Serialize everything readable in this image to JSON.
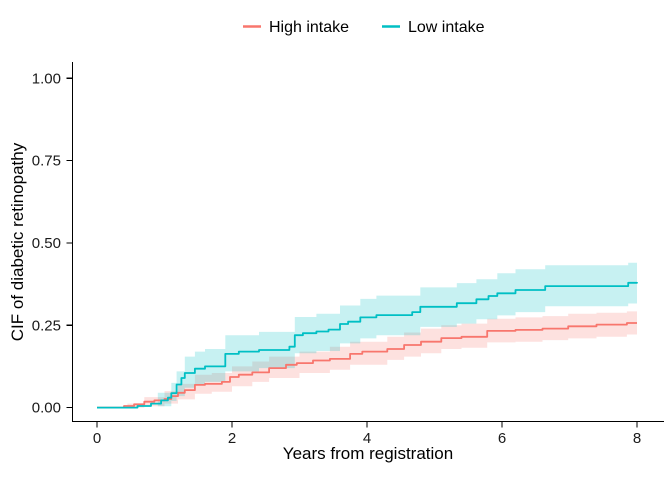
{
  "chart_data": {
    "type": "line",
    "subtype": "step-cumulative-incidence",
    "title": "",
    "xlabel": "Years from registration",
    "ylabel": "CIF of diabetic retinopathy",
    "xlim": [
      0,
      8
    ],
    "ylim": [
      0,
      1
    ],
    "grid": false,
    "legend_position": "top-center",
    "x_ticks": [
      {
        "label": "0",
        "value": 0
      },
      {
        "label": "2",
        "value": 2
      },
      {
        "label": "4",
        "value": 4
      },
      {
        "label": "6",
        "value": 6
      },
      {
        "label": "8",
        "value": 8
      }
    ],
    "y_ticks": [
      {
        "label": "0.00",
        "value": 0.0
      },
      {
        "label": "0.25",
        "value": 0.25
      },
      {
        "label": "0.50",
        "value": 0.5
      },
      {
        "label": "0.75",
        "value": 0.75
      },
      {
        "label": "1.00",
        "value": 1.0
      }
    ],
    "series": [
      {
        "name": "High intake",
        "color": "#F8766D",
        "band_color": "rgba(248,118,109,0.22)",
        "step": true,
        "points": [
          [
            0,
            0
          ],
          [
            0.4,
            0.005
          ],
          [
            0.55,
            0.01
          ],
          [
            0.7,
            0.018
          ],
          [
            0.85,
            0.022
          ],
          [
            1.0,
            0.026
          ],
          [
            1.1,
            0.035
          ],
          [
            1.2,
            0.045
          ],
          [
            1.3,
            0.053
          ],
          [
            1.45,
            0.069
          ],
          [
            1.6,
            0.072
          ],
          [
            1.85,
            0.078
          ],
          [
            1.97,
            0.093
          ],
          [
            2.1,
            0.1
          ],
          [
            2.3,
            0.107
          ],
          [
            2.55,
            0.12
          ],
          [
            2.8,
            0.13
          ],
          [
            2.96,
            0.135
          ],
          [
            3.2,
            0.143
          ],
          [
            3.45,
            0.148
          ],
          [
            3.75,
            0.163
          ],
          [
            3.93,
            0.17
          ],
          [
            4.3,
            0.178
          ],
          [
            4.55,
            0.19
          ],
          [
            4.8,
            0.2
          ],
          [
            5.1,
            0.211
          ],
          [
            5.4,
            0.215
          ],
          [
            5.78,
            0.233
          ],
          [
            6.2,
            0.236
          ],
          [
            6.6,
            0.24
          ],
          [
            6.98,
            0.247
          ],
          [
            7.4,
            0.252
          ],
          [
            7.85,
            0.257
          ],
          [
            8,
            0.257
          ]
        ],
        "band": [
          [
            0.45,
            0.0,
            0.012
          ],
          [
            0.7,
            0.004,
            0.032
          ],
          [
            1.0,
            0.012,
            0.05
          ],
          [
            1.2,
            0.025,
            0.072
          ],
          [
            1.45,
            0.042,
            0.1
          ],
          [
            1.7,
            0.048,
            0.105
          ],
          [
            2.0,
            0.065,
            0.125
          ],
          [
            2.3,
            0.078,
            0.14
          ],
          [
            2.55,
            0.09,
            0.155
          ],
          [
            3.0,
            0.105,
            0.17
          ],
          [
            3.45,
            0.115,
            0.185
          ],
          [
            3.75,
            0.13,
            0.2
          ],
          [
            4.3,
            0.145,
            0.215
          ],
          [
            4.55,
            0.155,
            0.228
          ],
          [
            4.8,
            0.165,
            0.24
          ],
          [
            5.1,
            0.178,
            0.25
          ],
          [
            5.4,
            0.182,
            0.255
          ],
          [
            5.78,
            0.198,
            0.27
          ],
          [
            6.2,
            0.2,
            0.274
          ],
          [
            6.6,
            0.205,
            0.278
          ],
          [
            6.98,
            0.21,
            0.285
          ],
          [
            7.4,
            0.215,
            0.288
          ],
          [
            7.85,
            0.222,
            0.292
          ],
          [
            8,
            0.222,
            0.292
          ]
        ]
      },
      {
        "name": "Low intake",
        "color": "#00BFC4",
        "band_color": "rgba(0,191,196,0.22)",
        "step": true,
        "points": [
          [
            0,
            0
          ],
          [
            0.6,
            0.005
          ],
          [
            0.8,
            0.012
          ],
          [
            0.95,
            0.022
          ],
          [
            1.05,
            0.03
          ],
          [
            1.1,
            0.044
          ],
          [
            1.18,
            0.07
          ],
          [
            1.25,
            0.09
          ],
          [
            1.3,
            0.105
          ],
          [
            1.45,
            0.118
          ],
          [
            1.6,
            0.125
          ],
          [
            1.9,
            0.163
          ],
          [
            2.1,
            0.17
          ],
          [
            2.4,
            0.175
          ],
          [
            2.85,
            0.185
          ],
          [
            2.93,
            0.22
          ],
          [
            3.05,
            0.226
          ],
          [
            3.25,
            0.231
          ],
          [
            3.43,
            0.237
          ],
          [
            3.6,
            0.254
          ],
          [
            3.72,
            0.261
          ],
          [
            3.9,
            0.274
          ],
          [
            4.14,
            0.281
          ],
          [
            4.67,
            0.29
          ],
          [
            4.79,
            0.306
          ],
          [
            5.33,
            0.317
          ],
          [
            5.62,
            0.329
          ],
          [
            5.8,
            0.339
          ],
          [
            5.93,
            0.347
          ],
          [
            6.2,
            0.357
          ],
          [
            6.64,
            0.369
          ],
          [
            7.87,
            0.379
          ],
          [
            8,
            0.381
          ]
        ],
        "band": [
          [
            0.9,
            0.004,
            0.045
          ],
          [
            1.1,
            0.02,
            0.075
          ],
          [
            1.18,
            0.035,
            0.11
          ],
          [
            1.3,
            0.06,
            0.155
          ],
          [
            1.45,
            0.07,
            0.17
          ],
          [
            1.6,
            0.078,
            0.178
          ],
          [
            1.9,
            0.11,
            0.22
          ],
          [
            2.4,
            0.12,
            0.23
          ],
          [
            2.93,
            0.165,
            0.275
          ],
          [
            3.25,
            0.172,
            0.285
          ],
          [
            3.6,
            0.195,
            0.31
          ],
          [
            3.9,
            0.21,
            0.33
          ],
          [
            4.14,
            0.22,
            0.34
          ],
          [
            4.79,
            0.245,
            0.365
          ],
          [
            5.33,
            0.255,
            0.378
          ],
          [
            5.62,
            0.268,
            0.39
          ],
          [
            5.93,
            0.28,
            0.408
          ],
          [
            6.2,
            0.29,
            0.42
          ],
          [
            6.64,
            0.308,
            0.432
          ],
          [
            7.87,
            0.316,
            0.44
          ],
          [
            8,
            0.316,
            0.442
          ]
        ]
      }
    ]
  },
  "colors": {
    "axis_line": "#000000",
    "tick_text": "#1a1a1a",
    "background": "#ffffff"
  }
}
